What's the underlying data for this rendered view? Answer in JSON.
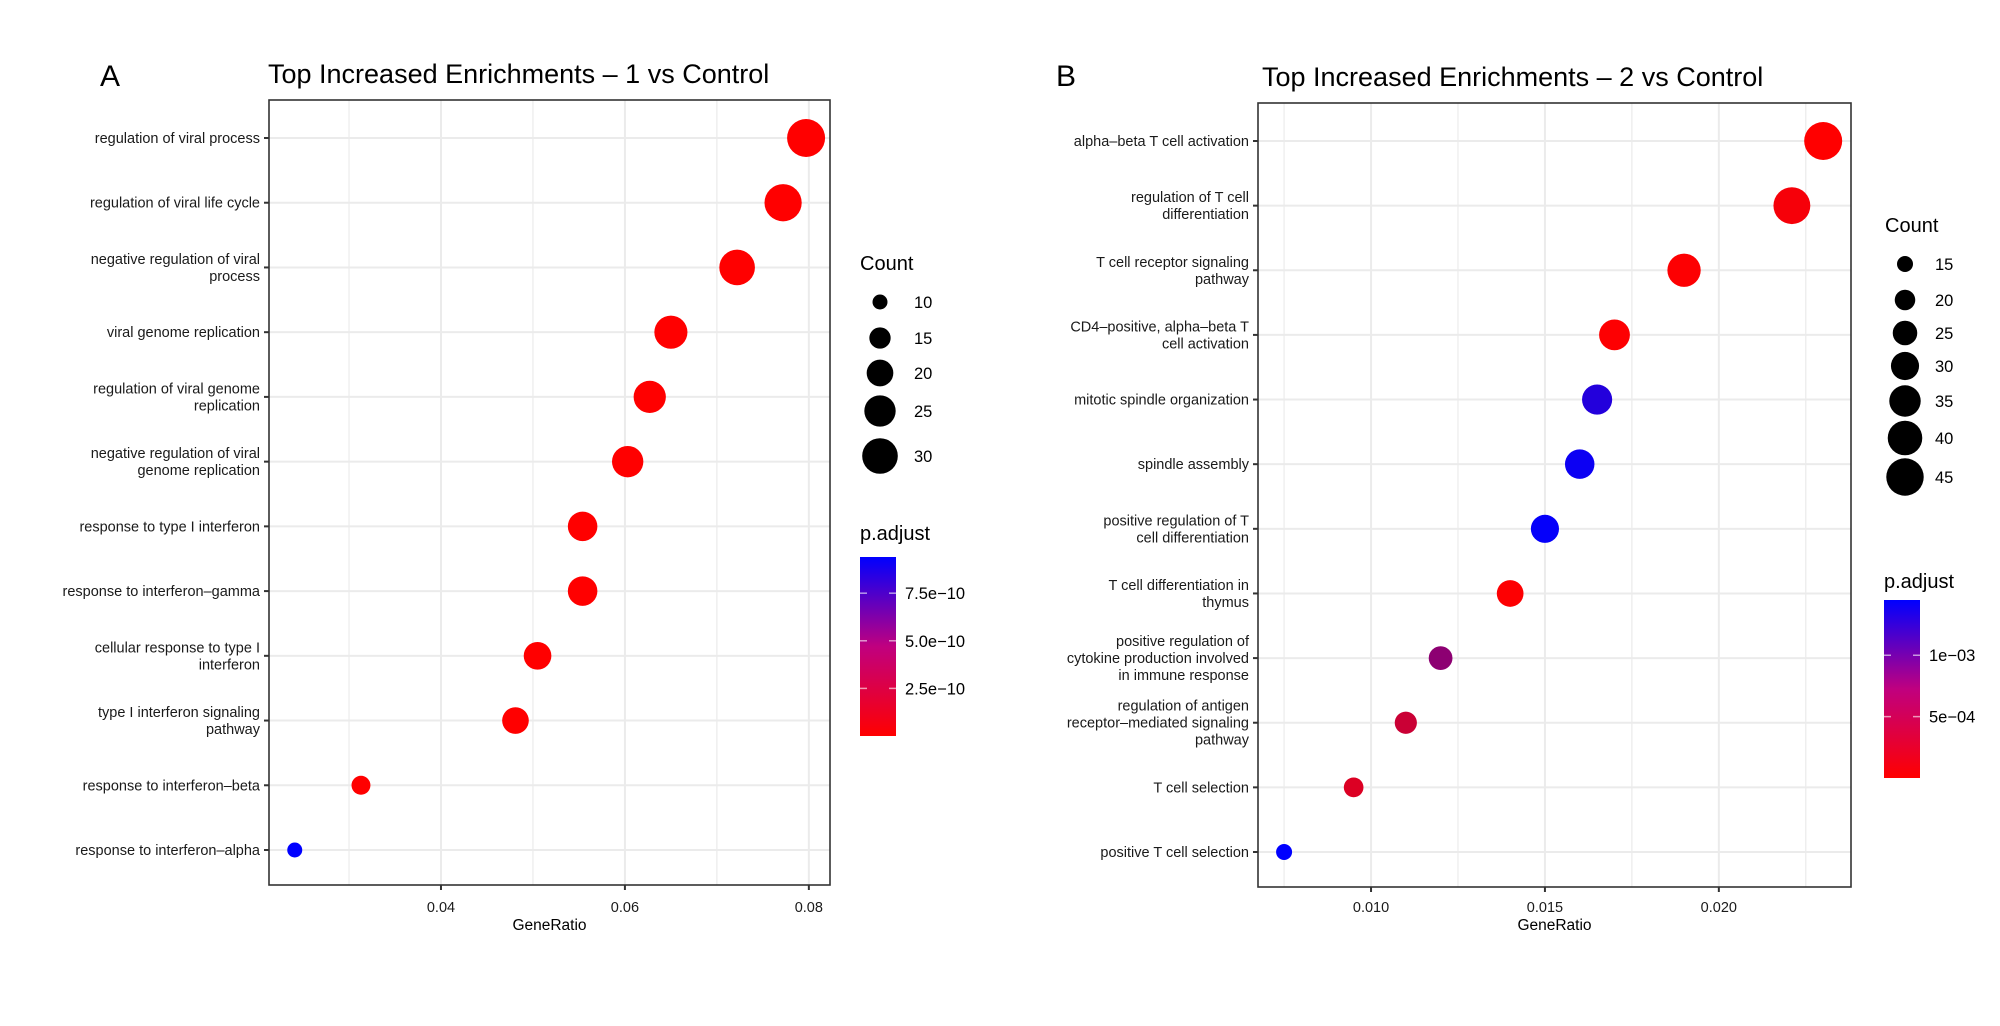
{
  "chart_data": [
    {
      "type": "scatter",
      "panel_label": "A",
      "title": "Top Increased Enrichments –  1 vs Control",
      "xlabel": "GeneRatio",
      "ylabel": "",
      "xlim": [
        0.0213,
        0.0823
      ],
      "xticks": [
        0.04,
        0.06,
        0.08
      ],
      "xtick_labels": [
        "0.04",
        "0.06",
        "0.08"
      ],
      "grid": true,
      "categories": [
        [
          "regulation of viral process"
        ],
        [
          "regulation of viral life cycle"
        ],
        [
          "negative regulation of viral",
          "process"
        ],
        [
          "viral genome replication"
        ],
        [
          "regulation of viral genome",
          "replication"
        ],
        [
          "negative regulation of viral",
          "genome replication"
        ],
        [
          "response to type I interferon"
        ],
        [
          "response to interferon–gamma"
        ],
        [
          "cellular response to type I",
          "interferon"
        ],
        [
          "type I interferon signaling",
          "pathway"
        ],
        [
          "response to interferon–beta"
        ],
        [
          "response to interferon–alpha"
        ]
      ],
      "gene_ratio": [
        0.0797,
        0.0772,
        0.0722,
        0.065,
        0.0627,
        0.0603,
        0.0554,
        0.0554,
        0.0505,
        0.0481,
        0.0313,
        0.0241
      ],
      "count": [
        33,
        32,
        30,
        27,
        26,
        25,
        23,
        23,
        21,
        20,
        13,
        10
      ],
      "p_adjust": [
        1e-12,
        1e-12,
        1e-12,
        1e-12,
        1e-12,
        1e-12,
        1e-12,
        1e-12,
        1e-12,
        1e-12,
        1e-12,
        9.4e-10
      ],
      "size_legend": {
        "title": "Count",
        "values": [
          10,
          15,
          20,
          25,
          30
        ],
        "labels": [
          "10",
          "15",
          "20",
          "25",
          "30"
        ]
      },
      "color_legend": {
        "title": "p.adjust",
        "range": [
          0,
          9.4e-10
        ],
        "ticks": [
          2.5e-10,
          5e-10,
          7.5e-10
        ],
        "labels": [
          "2.5e−10",
          "5.0e−10",
          "7.5e−10"
        ],
        "low_color": "#ff0000",
        "high_color": "#0000ff"
      }
    },
    {
      "type": "scatter",
      "panel_label": "B",
      "title": "Top Increased Enrichments –  2 vs Control",
      "xlabel": "GeneRatio",
      "ylabel": "",
      "xlim": [
        0.00675,
        0.0238
      ],
      "xticks": [
        0.01,
        0.015,
        0.02
      ],
      "xtick_labels": [
        "0.010",
        "0.015",
        "0.020"
      ],
      "grid": true,
      "categories": [
        [
          "alpha–beta T cell activation"
        ],
        [
          "regulation of T cell",
          "differentiation"
        ],
        [
          "T cell receptor signaling",
          "pathway"
        ],
        [
          "CD4–positive, alpha–beta T",
          "cell activation"
        ],
        [
          "mitotic spindle organization"
        ],
        [
          "spindle assembly"
        ],
        [
          "positive regulation of T",
          "cell differentiation"
        ],
        [
          "T cell differentiation in",
          "thymus"
        ],
        [
          "positive regulation of",
          "cytokine production involved",
          "in immune response"
        ],
        [
          "regulation of antigen",
          "receptor–mediated signaling",
          "pathway"
        ],
        [
          "T cell selection"
        ],
        [
          "positive T cell selection"
        ]
      ],
      "gene_ratio": [
        0.023,
        0.0221,
        0.019,
        0.017,
        0.0165,
        0.016,
        0.015,
        0.014,
        0.012,
        0.011,
        0.0095,
        0.0075
      ],
      "count": [
        46,
        44,
        38,
        34,
        33,
        32,
        30,
        28,
        24,
        22,
        19,
        15
      ],
      "p_adjust": [
        1e-06,
        5e-05,
        1e-05,
        1e-05,
        0.00125,
        0.00138,
        0.00142,
        1e-05,
        0.00065,
        0.0003,
        0.0002,
        0.00145
      ],
      "size_legend": {
        "title": "Count",
        "values": [
          15,
          20,
          25,
          30,
          35,
          40,
          45
        ],
        "labels": [
          "15",
          "20",
          "25",
          "30",
          "35",
          "40",
          "45"
        ]
      },
      "color_legend": {
        "title": "p.adjust",
        "range": [
          0,
          0.00145
        ],
        "ticks": [
          0.0005,
          0.001
        ],
        "labels": [
          "5e−04",
          "1e−03"
        ],
        "low_color": "#ff0000",
        "high_color": "#0000ff"
      }
    }
  ]
}
